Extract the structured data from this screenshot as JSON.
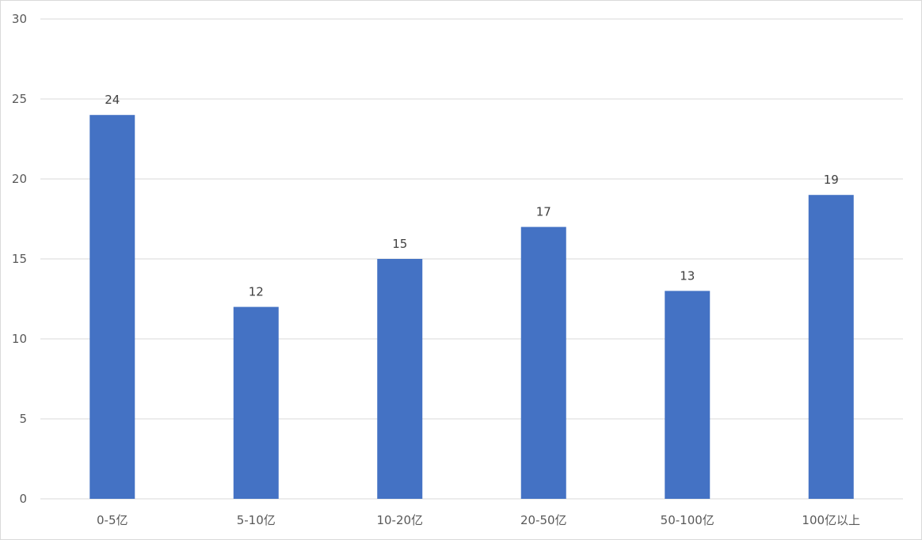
{
  "chart_data": {
    "type": "bar",
    "title": "",
    "xlabel": "",
    "ylabel": "",
    "categories": [
      "0-5亿",
      "5-10亿",
      "10-20亿",
      "20-50亿",
      "50-100亿",
      "100亿以上"
    ],
    "values": [
      24,
      12,
      15,
      17,
      13,
      19
    ],
    "data_labels": [
      "24",
      "12",
      "15",
      "17",
      "13",
      "19"
    ],
    "ylim": [
      0,
      30
    ],
    "yticks": [
      0,
      5,
      10,
      15,
      20,
      25,
      30
    ],
    "ytick_labels": [
      "0",
      "5",
      "10",
      "15",
      "20",
      "25",
      "30"
    ],
    "grid": true,
    "legend": "none",
    "bar_color": "#4472c4",
    "grid_color": "#d9d9d9"
  }
}
